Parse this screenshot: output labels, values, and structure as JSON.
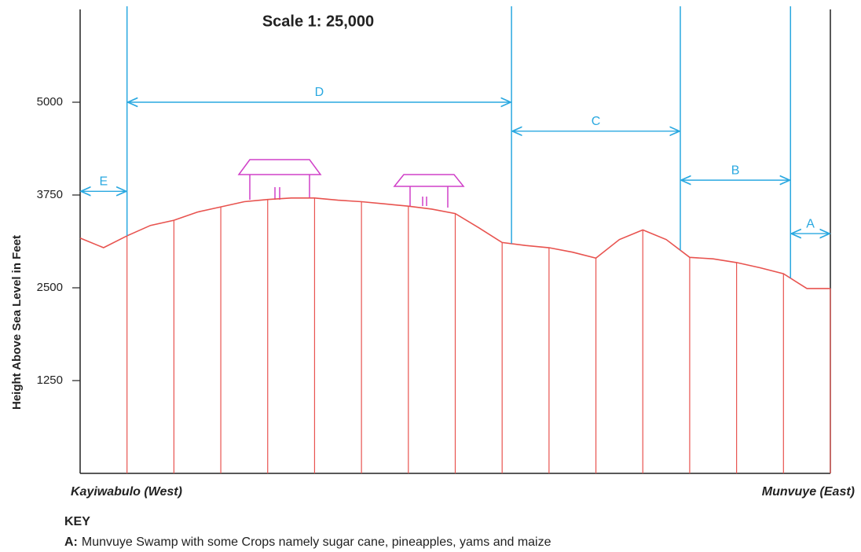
{
  "chart_data": {
    "type": "line",
    "title": "Scale 1: 25,000",
    "y_label": "Height Above Sea Level in Feet",
    "x_start_label": "Kayiwabulo (West)",
    "x_end_label": "Munvuye (East)",
    "categories": [
      null,
      null,
      null,
      null,
      null,
      null,
      null,
      null,
      null,
      null,
      null,
      null,
      null,
      null,
      null,
      null,
      null,
      null,
      null,
      null,
      null,
      null,
      null,
      null,
      null,
      null,
      null,
      null,
      null,
      null,
      null,
      null,
      null
    ],
    "values": [
      3170,
      3040,
      3200,
      3340,
      3410,
      3520,
      3590,
      3660,
      3690,
      3710,
      3710,
      3680,
      3660,
      3630,
      3600,
      3560,
      3500,
      3310,
      3110,
      3070,
      3040,
      2980,
      2900,
      3150,
      3280,
      3150,
      2910,
      2890,
      2840,
      2770,
      2690,
      2490,
      2490
    ],
    "color": "#e8534f",
    "ylim": [
      0,
      6250
    ],
    "yticks": [
      1250,
      2500,
      3750,
      5000
    ],
    "segment_color": "#29a8e0",
    "segments": [
      {
        "label": "E",
        "start": 0,
        "end": 2,
        "level": 3800
      },
      {
        "label": "D",
        "start": 2,
        "end": 18.4,
        "level": 5000
      },
      {
        "label": "C",
        "start": 18.4,
        "end": 25.6,
        "level": 4610
      },
      {
        "label": "B",
        "start": 25.6,
        "end": 30.3,
        "level": 3950
      },
      {
        "label": "A",
        "start": 30.3,
        "end": 32,
        "level": 3230
      }
    ]
  },
  "key": {
    "title": "KEY",
    "items": [
      {
        "letter": "A:",
        "text": "Munvuye Swamp with some Crops namely sugar cane, pineapples, yams and maize"
      }
    ]
  }
}
